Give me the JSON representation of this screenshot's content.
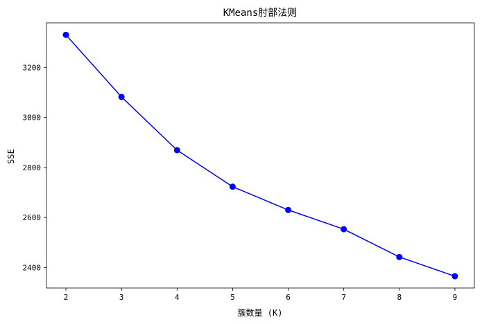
{
  "chart_data": {
    "type": "line",
    "title": "KMeans肘部法则",
    "xlabel": "簇数量 (K)",
    "ylabel": "SSE",
    "x": [
      2,
      3,
      4,
      5,
      6,
      7,
      8,
      9
    ],
    "series": [
      {
        "values": [
          3330,
          3082,
          2869,
          2723,
          2630,
          2553,
          2442,
          2365
        ],
        "color": "#0000ff",
        "marker": "circle"
      }
    ],
    "xlim": [
      1.65,
      9.35
    ],
    "ylim": [
      2318,
      3378
    ],
    "xticks": [
      2,
      3,
      4,
      5,
      6,
      7,
      8,
      9
    ],
    "yticks": [
      2400,
      2600,
      2800,
      3000,
      3200
    ],
    "grid": false,
    "legend": false
  }
}
